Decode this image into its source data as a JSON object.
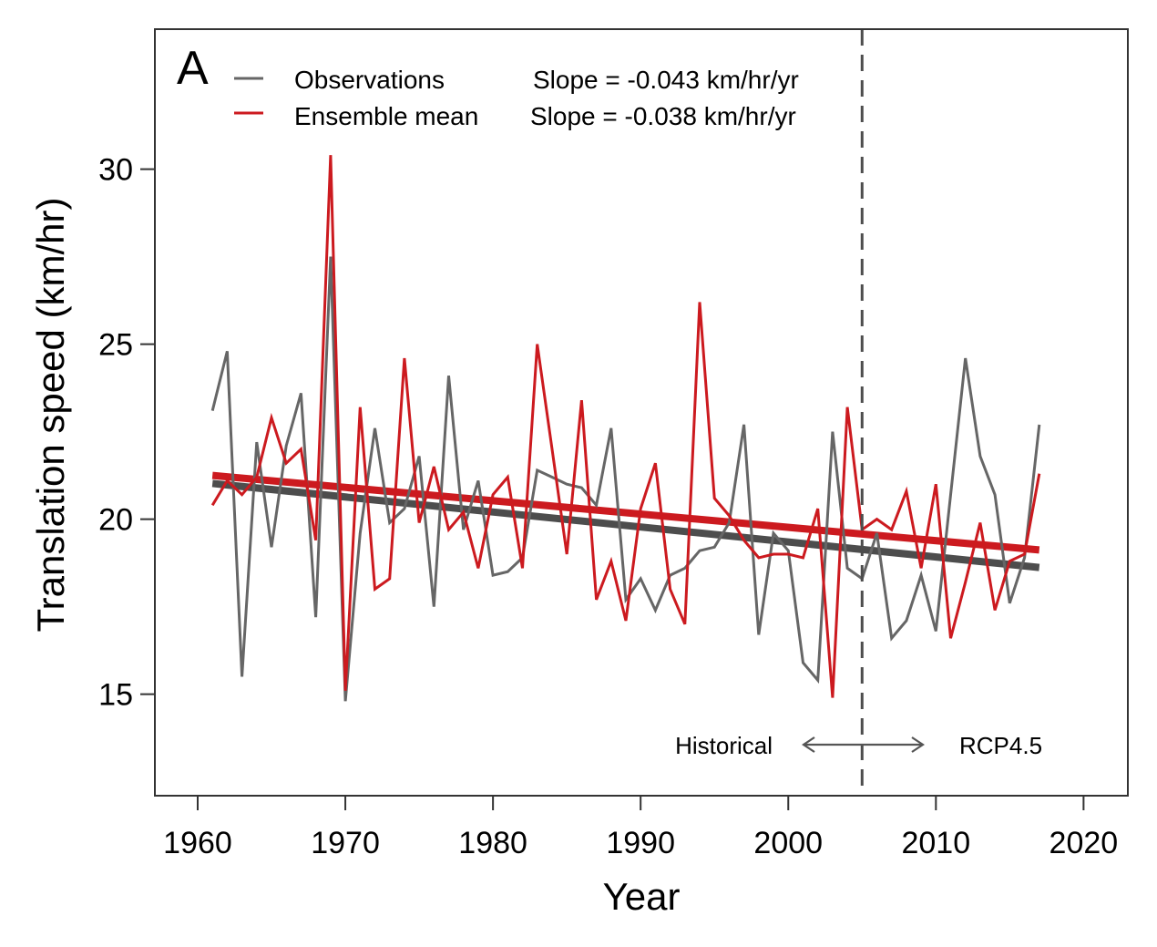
{
  "chart_data": {
    "type": "line",
    "panel_label": "A",
    "title": "",
    "xlabel": "Year",
    "ylabel": "Translation speed (km/hr)",
    "xlim": [
      1957.1,
      2023.0
    ],
    "ylim": [
      12.1,
      34.0
    ],
    "xticks": [
      1960,
      1970,
      1980,
      1990,
      2000,
      2010,
      2020
    ],
    "yticks": [
      15,
      20,
      25,
      30
    ],
    "grid": false,
    "legend": {
      "placement": "top-left",
      "entries": [
        {
          "label": "Observations",
          "slope_text": "Slope = -0.043 km/hr/yr",
          "color": "#666666"
        },
        {
          "label": "Ensemble mean",
          "slope_text": "Slope = -0.038 km/hr/yr",
          "color": "#cc1a1f"
        }
      ]
    },
    "x": [
      1961,
      1962,
      1963,
      1964,
      1965,
      1966,
      1967,
      1968,
      1969,
      1970,
      1971,
      1972,
      1973,
      1974,
      1975,
      1976,
      1977,
      1978,
      1979,
      1980,
      1981,
      1982,
      1983,
      1984,
      1985,
      1986,
      1987,
      1988,
      1989,
      1990,
      1991,
      1992,
      1993,
      1994,
      1995,
      1996,
      1997,
      1998,
      1999,
      2000,
      2001,
      2002,
      2003,
      2004,
      2005,
      2006,
      2007,
      2008,
      2009,
      2010,
      2011,
      2012,
      2013,
      2014,
      2015,
      2016,
      2017
    ],
    "series": [
      {
        "name": "Observations",
        "color": "#666666",
        "values": [
          23.1,
          24.8,
          15.5,
          22.2,
          19.2,
          22.1,
          23.6,
          17.2,
          27.5,
          14.8,
          19.6,
          22.6,
          19.9,
          20.3,
          21.8,
          17.5,
          24.1,
          19.7,
          21.1,
          18.4,
          18.5,
          18.9,
          21.4,
          21.2,
          21.0,
          20.9,
          20.4,
          22.6,
          17.7,
          18.3,
          17.4,
          18.4,
          18.6,
          19.1,
          19.2,
          19.9,
          22.7,
          16.7,
          19.6,
          19.1,
          15.9,
          15.4,
          22.5,
          18.6,
          18.3,
          19.6,
          16.6,
          17.1,
          18.4,
          16.8,
          20.7,
          24.6,
          21.8,
          20.7,
          17.6,
          18.9,
          22.7
        ]
      },
      {
        "name": "Ensemble mean",
        "color": "#cc1a1f",
        "values": [
          20.4,
          21.1,
          20.7,
          21.2,
          22.9,
          21.6,
          22.0,
          19.4,
          30.4,
          15.1,
          23.2,
          18.0,
          18.3,
          24.6,
          19.9,
          21.5,
          19.7,
          20.2,
          18.6,
          20.7,
          21.2,
          18.6,
          25.0,
          22.0,
          19.0,
          23.4,
          17.7,
          18.8,
          17.1,
          20.3,
          21.6,
          18.0,
          17.0,
          26.2,
          20.6,
          20.1,
          19.4,
          18.9,
          19.0,
          19.0,
          18.9,
          20.3,
          14.9,
          23.2,
          19.7,
          20.0,
          19.7,
          20.8,
          18.6,
          21.0,
          16.6,
          18.2,
          19.9,
          17.4,
          18.8,
          19.0,
          21.3
        ]
      }
    ],
    "trend_lines": [
      {
        "name": "Observations trend",
        "color": "#4d4d4d",
        "x": [
          1961,
          2017
        ],
        "y": [
          21.02,
          18.62
        ]
      },
      {
        "name": "Ensemble mean trend",
        "color": "#cc1a1f",
        "x": [
          1961,
          2017
        ],
        "y": [
          21.25,
          19.12
        ]
      }
    ],
    "vline": {
      "x": 2005,
      "style": "dashed"
    },
    "annotations": {
      "left": "Historical",
      "right": "RCP4.5",
      "arrow": "double-headed"
    }
  }
}
